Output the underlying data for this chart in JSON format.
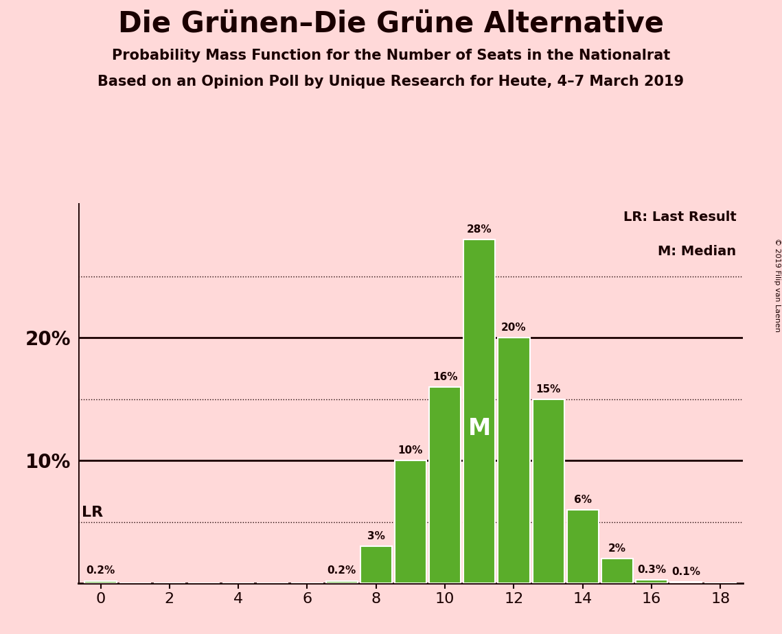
{
  "title": "Die Grünen–Die Grüne Alternative",
  "subtitle1": "Probability Mass Function for the Number of Seats in the Nationalrat",
  "subtitle2": "Based on an Opinion Poll by Unique Research for Heute, 4–7 March 2019",
  "copyright": "© 2019 Filip van Laenen",
  "seats": [
    0,
    1,
    2,
    3,
    4,
    5,
    6,
    7,
    8,
    9,
    10,
    11,
    12,
    13,
    14,
    15,
    16,
    17,
    18
  ],
  "probabilities": [
    0.2,
    0.0,
    0.0,
    0.0,
    0.0,
    0.0,
    0.0,
    0.2,
    3.0,
    10.0,
    16.0,
    28.0,
    20.0,
    15.0,
    6.0,
    2.0,
    0.3,
    0.1,
    0.0
  ],
  "bar_color": "#5aad2a",
  "bar_edge_color": "#ffffff",
  "background_color": "#ffd9d9",
  "text_color": "#1a0000",
  "median": 11,
  "last_result": 5,
  "ymax": 31,
  "legend_lr": "LR: Last Result",
  "legend_m": "M: Median",
  "dotted_lines": [
    5.0,
    15.0,
    25.0
  ],
  "solid_lines": [
    10.0,
    20.0
  ],
  "label_threshold": 0.05
}
